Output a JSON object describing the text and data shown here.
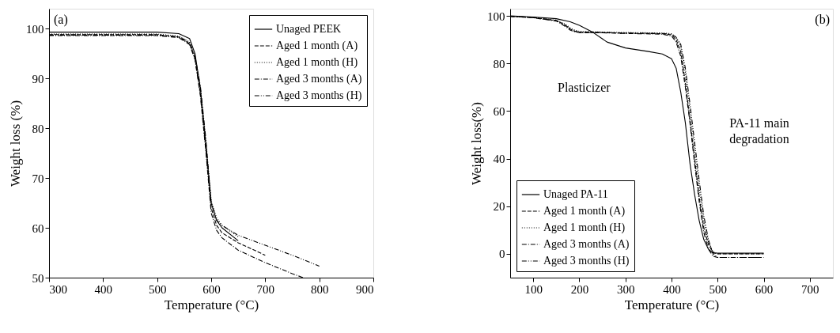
{
  "chart_data": [
    {
      "type": "line",
      "title": "(a)",
      "xlabel": "Temperature (°C)",
      "ylabel": "Weight loss (%)",
      "xlim": [
        300,
        900
      ],
      "xticks": [
        300,
        400,
        500,
        600,
        700,
        800,
        900
      ],
      "ylim": [
        50,
        104
      ],
      "yticks": [
        50,
        60,
        70,
        80,
        90,
        100
      ],
      "grid": false,
      "legend": "top right",
      "marker": "none",
      "series": [
        {
          "name": "Unaged PEEK",
          "color": "#000000",
          "line_style": "solid",
          "x": [
            300,
            500,
            540,
            560,
            570,
            580,
            590,
            600,
            610,
            620,
            650
          ],
          "values": [
            99.3,
            99.3,
            99.0,
            98.0,
            95.0,
            88.0,
            77.0,
            65.0,
            61.5,
            60.0,
            57.4
          ]
        },
        {
          "name": "Aged 1 month (A)",
          "color": "#000000",
          "line_style": "dashed",
          "x": [
            300,
            500,
            540,
            560,
            570,
            580,
            590,
            600,
            610,
            620,
            650,
            700
          ],
          "values": [
            98.8,
            98.8,
            98.3,
            97.0,
            94.0,
            87.0,
            76.0,
            64.0,
            60.5,
            59.0,
            57.0,
            54.5
          ]
        },
        {
          "name": "Aged 1 month (H)",
          "color": "#000000",
          "line_style": "dotted",
          "x": [
            300,
            500,
            540,
            560,
            570,
            580,
            590,
            600,
            610,
            620,
            650
          ],
          "values": [
            98.9,
            98.9,
            98.5,
            97.3,
            94.5,
            88.0,
            77.5,
            65.5,
            62.0,
            60.5,
            58.2
          ]
        },
        {
          "name": "Aged 3 months (A)",
          "color": "#000000",
          "line_style": "dashdot",
          "x": [
            300,
            500,
            540,
            560,
            570,
            580,
            590,
            600,
            610,
            620,
            650,
            700,
            750,
            770
          ],
          "values": [
            98.6,
            98.6,
            98.2,
            96.8,
            93.8,
            86.5,
            75.5,
            63.0,
            59.5,
            58.0,
            55.5,
            53.0,
            50.8,
            50.0
          ]
        },
        {
          "name": "Aged 3 months (H)",
          "color": "#000000",
          "line_style": "dashdotdot",
          "x": [
            300,
            500,
            540,
            560,
            570,
            580,
            590,
            600,
            610,
            620,
            650,
            700,
            750,
            800
          ],
          "values": [
            98.7,
            98.7,
            98.4,
            97.2,
            94.5,
            88.5,
            78.0,
            65.0,
            61.5,
            60.5,
            58.5,
            56.5,
            54.5,
            52.3
          ]
        }
      ]
    },
    {
      "type": "line",
      "title": "(b)",
      "xlabel": "Temperature (°C)",
      "ylabel": "Weight loss(%)",
      "xlim": [
        50,
        750
      ],
      "xticks": [
        100,
        200,
        300,
        400,
        500,
        600,
        700
      ],
      "ylim": [
        -10,
        103
      ],
      "yticks": [
        0,
        20,
        40,
        60,
        80,
        100
      ],
      "grid": false,
      "legend": "bottom left",
      "marker": "none",
      "annotations": [
        "Plasticizer",
        "PA-11 main degradation"
      ],
      "series": [
        {
          "name": "Unaged PA-11",
          "color": "#000000",
          "line_style": "solid",
          "x": [
            50,
            100,
            150,
            180,
            200,
            230,
            260,
            300,
            350,
            380,
            400,
            410,
            420,
            430,
            440,
            450,
            460,
            470,
            480,
            490,
            600
          ],
          "values": [
            100.0,
            99.5,
            98.8,
            97.5,
            96.0,
            93.0,
            89.0,
            86.5,
            85.0,
            84.0,
            82.0,
            78.0,
            68.0,
            55.0,
            38.0,
            25.0,
            14.0,
            6.0,
            2.0,
            0.3,
            0.3
          ]
        },
        {
          "name": "Aged 1 month (A)",
          "color": "#000000",
          "line_style": "dashed",
          "x": [
            50,
            100,
            150,
            170,
            180,
            190,
            200,
            250,
            300,
            380,
            400,
            410,
            420,
            430,
            440,
            450,
            460,
            470,
            480,
            490,
            500,
            600
          ],
          "values": [
            99.8,
            99.3,
            98.0,
            96.0,
            94.5,
            93.5,
            93.0,
            93.0,
            92.7,
            92.5,
            92.0,
            90.0,
            85.0,
            72.0,
            56.0,
            40.0,
            24.0,
            11.0,
            4.0,
            0.5,
            0.0,
            0.0
          ]
        },
        {
          "name": "Aged 1 month (H)",
          "color": "#000000",
          "line_style": "dotted",
          "x": [
            50,
            100,
            150,
            170,
            180,
            190,
            200,
            250,
            300,
            380,
            400,
            410,
            420,
            430,
            440,
            450,
            460,
            470,
            480,
            490,
            500,
            595
          ],
          "values": [
            99.8,
            99.3,
            98.2,
            96.5,
            95.0,
            94.0,
            93.5,
            93.2,
            93.0,
            92.8,
            92.5,
            91.0,
            87.0,
            76.0,
            60.0,
            44.0,
            28.0,
            14.0,
            5.0,
            1.0,
            0.0,
            0.0
          ]
        },
        {
          "name": "Aged 3 months (A)",
          "color": "#000000",
          "line_style": "dashdot",
          "x": [
            50,
            100,
            150,
            170,
            180,
            190,
            200,
            250,
            300,
            380,
            400,
            410,
            420,
            430,
            440,
            450,
            460,
            470,
            480,
            490,
            500,
            600
          ],
          "values": [
            99.8,
            99.2,
            97.8,
            95.5,
            94.0,
            93.3,
            93.0,
            92.9,
            92.6,
            92.3,
            91.5,
            89.0,
            83.0,
            70.0,
            55.0,
            38.0,
            22.0,
            9.0,
            2.0,
            -1.0,
            -1.5,
            -1.5
          ]
        },
        {
          "name": "Aged 3 months (H)",
          "color": "#000000",
          "line_style": "dashdotdot",
          "x": [
            50,
            100,
            150,
            170,
            180,
            190,
            200,
            250,
            300,
            380,
            400,
            410,
            420,
            430,
            440,
            450,
            460,
            470,
            480,
            490,
            500,
            595
          ],
          "values": [
            99.8,
            99.3,
            98.0,
            96.0,
            94.5,
            93.6,
            93.2,
            93.0,
            92.8,
            92.6,
            92.3,
            91.0,
            88.0,
            78.0,
            63.0,
            47.0,
            31.0,
            16.0,
            6.0,
            0.0,
            -1.5,
            -1.5
          ]
        }
      ]
    }
  ]
}
